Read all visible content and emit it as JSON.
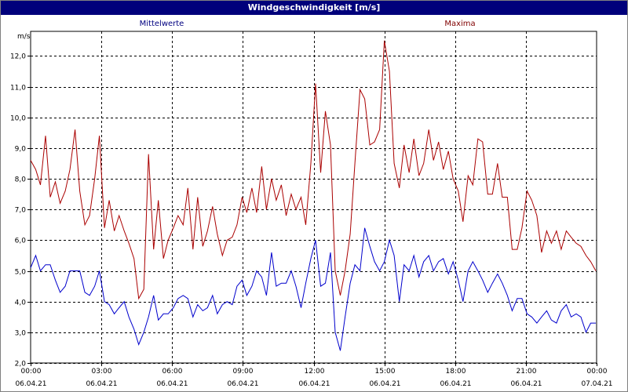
{
  "window": {
    "title": "Windgeschwindigkeit [m/s]"
  },
  "chart_data": {
    "type": "line",
    "title": "Windgeschwindigkeit [m/s]",
    "ylabel": "m/s",
    "xlabel": "",
    "ylim": [
      2.0,
      12.8
    ],
    "yticks": [
      2.0,
      3.0,
      4.0,
      5.0,
      6.0,
      7.0,
      8.0,
      9.0,
      10.0,
      11.0,
      12.0
    ],
    "ytick_labels": [
      "2,0",
      "3,0",
      "4,0",
      "5,0",
      "6,0",
      "7,0",
      "8,0",
      "9,0",
      "10,0",
      "11,0",
      "12,0"
    ],
    "xlim": [
      "06.04.21 00:00",
      "07.04.21 00:00"
    ],
    "xticks": [
      {
        "time": "00:00",
        "date": "06.04.21"
      },
      {
        "time": "03:00",
        "date": "06.04.21"
      },
      {
        "time": "06:00",
        "date": "06.04.21"
      },
      {
        "time": "09:00",
        "date": "06.04.21"
      },
      {
        "time": "12:00",
        "date": "06.04.21"
      },
      {
        "time": "15:00",
        "date": "06.04.21"
      },
      {
        "time": "18:00",
        "date": "06.04.21"
      },
      {
        "time": "21:00",
        "date": "06.04.21"
      },
      {
        "time": "00:00",
        "date": "07.04.21"
      }
    ],
    "grid": true,
    "legend_position": "top",
    "series": [
      {
        "name": "Mittelwerte",
        "color": "#0000cc",
        "points": [
          [
            "06.04.21 00:00",
            5.1
          ],
          [
            "06.04.21 00:13",
            5.5
          ],
          [
            "06.04.21 00:25",
            5.0
          ],
          [
            "06.04.21 00:38",
            5.2
          ],
          [
            "06.04.21 00:50",
            5.2
          ],
          [
            "06.04.21 01:03",
            4.7
          ],
          [
            "06.04.21 01:15",
            4.3
          ],
          [
            "06.04.21 01:28",
            4.5
          ],
          [
            "06.04.21 01:40",
            5.0
          ],
          [
            "06.04.21 01:53",
            5.0
          ],
          [
            "06.04.21 02:05",
            5.0
          ],
          [
            "06.04.21 02:18",
            4.3
          ],
          [
            "06.04.21 02:30",
            4.2
          ],
          [
            "06.04.21 02:43",
            4.5
          ],
          [
            "06.04.21 02:55",
            5.0
          ],
          [
            "06.04.21 03:08",
            4.0
          ],
          [
            "06.04.21 03:20",
            3.9
          ],
          [
            "06.04.21 03:33",
            3.6
          ],
          [
            "06.04.21 03:45",
            3.8
          ],
          [
            "06.04.21 03:58",
            4.0
          ],
          [
            "06.04.21 04:10",
            3.5
          ],
          [
            "06.04.21 04:23",
            3.1
          ],
          [
            "06.04.21 04:35",
            2.6
          ],
          [
            "06.04.21 04:48",
            3.0
          ],
          [
            "06.04.21 05:00",
            3.5
          ],
          [
            "06.04.21 05:13",
            4.2
          ],
          [
            "06.04.21 05:25",
            3.4
          ],
          [
            "06.04.21 05:38",
            3.6
          ],
          [
            "06.04.21 05:50",
            3.6
          ],
          [
            "06.04.21 06:03",
            3.8
          ],
          [
            "06.04.21 06:15",
            4.1
          ],
          [
            "06.04.21 06:28",
            4.2
          ],
          [
            "06.04.21 06:40",
            4.1
          ],
          [
            "06.04.21 06:53",
            3.5
          ],
          [
            "06.04.21 07:05",
            3.9
          ],
          [
            "06.04.21 07:18",
            3.7
          ],
          [
            "06.04.21 07:30",
            3.8
          ],
          [
            "06.04.21 07:43",
            4.2
          ],
          [
            "06.04.21 07:55",
            3.6
          ],
          [
            "06.04.21 08:08",
            3.9
          ],
          [
            "06.04.21 08:20",
            4.0
          ],
          [
            "06.04.21 08:33",
            3.9
          ],
          [
            "06.04.21 08:45",
            4.5
          ],
          [
            "06.04.21 08:58",
            4.7
          ],
          [
            "06.04.21 09:10",
            4.2
          ],
          [
            "06.04.21 09:23",
            4.5
          ],
          [
            "06.04.21 09:35",
            5.0
          ],
          [
            "06.04.21 09:48",
            4.8
          ],
          [
            "06.04.21 10:00",
            4.2
          ],
          [
            "06.04.21 10:13",
            5.6
          ],
          [
            "06.04.21 10:25",
            4.5
          ],
          [
            "06.04.21 10:38",
            4.6
          ],
          [
            "06.04.21 10:50",
            4.6
          ],
          [
            "06.04.21 11:03",
            5.0
          ],
          [
            "06.04.21 11:15",
            4.5
          ],
          [
            "06.04.21 11:28",
            3.8
          ],
          [
            "06.04.21 11:40",
            4.6
          ],
          [
            "06.04.21 11:53",
            5.4
          ],
          [
            "06.04.21 12:05",
            6.0
          ],
          [
            "06.04.21 12:18",
            4.5
          ],
          [
            "06.04.21 12:30",
            4.6
          ],
          [
            "06.04.21 12:43",
            5.6
          ],
          [
            "06.04.21 12:55",
            3.0
          ],
          [
            "06.04.21 13:08",
            2.4
          ],
          [
            "06.04.21 13:20",
            3.5
          ],
          [
            "06.04.21 13:33",
            4.6
          ],
          [
            "06.04.21 13:45",
            5.2
          ],
          [
            "06.04.21 13:58",
            5.0
          ],
          [
            "06.04.21 14:10",
            6.4
          ],
          [
            "06.04.21 14:23",
            5.8
          ],
          [
            "06.04.21 14:35",
            5.3
          ],
          [
            "06.04.21 14:48",
            5.0
          ],
          [
            "06.04.21 15:00",
            5.3
          ],
          [
            "06.04.21 15:13",
            6.0
          ],
          [
            "06.04.21 15:25",
            5.5
          ],
          [
            "06.04.21 15:38",
            4.0
          ],
          [
            "06.04.21 15:50",
            5.2
          ],
          [
            "06.04.21 16:03",
            5.0
          ],
          [
            "06.04.21 16:15",
            5.5
          ],
          [
            "06.04.21 16:28",
            4.8
          ],
          [
            "06.04.21 16:40",
            5.3
          ],
          [
            "06.04.21 16:53",
            5.5
          ],
          [
            "06.04.21 17:05",
            5.0
          ],
          [
            "06.04.21 17:18",
            5.3
          ],
          [
            "06.04.21 17:30",
            5.4
          ],
          [
            "06.04.21 17:43",
            4.9
          ],
          [
            "06.04.21 17:55",
            5.3
          ],
          [
            "06.04.21 18:08",
            4.7
          ],
          [
            "06.04.21 18:20",
            4.0
          ],
          [
            "06.04.21 18:33",
            5.0
          ],
          [
            "06.04.21 18:45",
            5.3
          ],
          [
            "06.04.21 18:58",
            5.0
          ],
          [
            "06.04.21 19:10",
            4.7
          ],
          [
            "06.04.21 19:23",
            4.3
          ],
          [
            "06.04.21 19:35",
            4.6
          ],
          [
            "06.04.21 19:48",
            4.9
          ],
          [
            "06.04.21 20:00",
            4.6
          ],
          [
            "06.04.21 20:13",
            4.2
          ],
          [
            "06.04.21 20:25",
            3.7
          ],
          [
            "06.04.21 20:38",
            4.1
          ],
          [
            "06.04.21 20:50",
            4.1
          ],
          [
            "06.04.21 21:03",
            3.6
          ],
          [
            "06.04.21 21:15",
            3.5
          ],
          [
            "06.04.21 21:28",
            3.3
          ],
          [
            "06.04.21 21:40",
            3.5
          ],
          [
            "06.04.21 21:53",
            3.7
          ],
          [
            "06.04.21 22:05",
            3.4
          ],
          [
            "06.04.21 22:18",
            3.3
          ],
          [
            "06.04.21 22:30",
            3.7
          ],
          [
            "06.04.21 22:43",
            3.9
          ],
          [
            "06.04.21 22:55",
            3.5
          ],
          [
            "06.04.21 23:08",
            3.6
          ],
          [
            "06.04.21 23:20",
            3.5
          ],
          [
            "06.04.21 23:33",
            3.0
          ],
          [
            "06.04.21 23:45",
            3.3
          ],
          [
            "06.04.21 23:58",
            3.3
          ]
        ]
      },
      {
        "name": "Maxima",
        "color": "#aa0000",
        "points": [
          [
            "06.04.21 00:00",
            8.6
          ],
          [
            "06.04.21 00:13",
            8.3
          ],
          [
            "06.04.21 00:25",
            7.8
          ],
          [
            "06.04.21 00:38",
            9.4
          ],
          [
            "06.04.21 00:50",
            7.4
          ],
          [
            "06.04.21 01:03",
            7.9
          ],
          [
            "06.04.21 01:15",
            7.2
          ],
          [
            "06.04.21 01:28",
            7.6
          ],
          [
            "06.04.21 01:40",
            8.3
          ],
          [
            "06.04.21 01:53",
            9.6
          ],
          [
            "06.04.21 02:05",
            7.6
          ],
          [
            "06.04.21 02:18",
            6.5
          ],
          [
            "06.04.21 02:30",
            6.8
          ],
          [
            "06.04.21 02:43",
            8.0
          ],
          [
            "06.04.21 02:55",
            9.4
          ],
          [
            "06.04.21 03:08",
            6.4
          ],
          [
            "06.04.21 03:20",
            7.3
          ],
          [
            "06.04.21 03:33",
            6.3
          ],
          [
            "06.04.21 03:45",
            6.8
          ],
          [
            "06.04.21 03:58",
            6.3
          ],
          [
            "06.04.21 04:10",
            5.9
          ],
          [
            "06.04.21 04:23",
            5.4
          ],
          [
            "06.04.21 04:35",
            4.1
          ],
          [
            "06.04.21 04:48",
            4.4
          ],
          [
            "06.04.21 05:00",
            8.8
          ],
          [
            "06.04.21 05:13",
            5.7
          ],
          [
            "06.04.21 05:25",
            7.3
          ],
          [
            "06.04.21 05:38",
            5.4
          ],
          [
            "06.04.21 05:50",
            6.0
          ],
          [
            "06.04.21 06:03",
            6.4
          ],
          [
            "06.04.21 06:15",
            6.8
          ],
          [
            "06.04.21 06:28",
            6.5
          ],
          [
            "06.04.21 06:40",
            7.7
          ],
          [
            "06.04.21 06:53",
            5.7
          ],
          [
            "06.04.21 07:05",
            7.4
          ],
          [
            "06.04.21 07:18",
            5.8
          ],
          [
            "06.04.21 07:30",
            6.3
          ],
          [
            "06.04.21 07:43",
            7.1
          ],
          [
            "06.04.21 07:55",
            6.2
          ],
          [
            "06.04.21 08:08",
            5.5
          ],
          [
            "06.04.21 08:20",
            6.0
          ],
          [
            "06.04.21 08:33",
            6.1
          ],
          [
            "06.04.21 08:45",
            6.5
          ],
          [
            "06.04.21 08:58",
            7.4
          ],
          [
            "06.04.21 09:10",
            6.9
          ],
          [
            "06.04.21 09:23",
            7.7
          ],
          [
            "06.04.21 09:35",
            6.9
          ],
          [
            "06.04.21 09:48",
            8.4
          ],
          [
            "06.04.21 10:00",
            7.0
          ],
          [
            "06.04.21 10:13",
            8.0
          ],
          [
            "06.04.21 10:25",
            7.3
          ],
          [
            "06.04.21 10:38",
            7.8
          ],
          [
            "06.04.21 10:50",
            6.8
          ],
          [
            "06.04.21 11:03",
            7.5
          ],
          [
            "06.04.21 11:15",
            7.0
          ],
          [
            "06.04.21 11:28",
            7.4
          ],
          [
            "06.04.21 11:40",
            6.5
          ],
          [
            "06.04.21 11:53",
            8.5
          ],
          [
            "06.04.21 12:05",
            11.1
          ],
          [
            "06.04.21 12:18",
            8.2
          ],
          [
            "06.04.21 12:30",
            10.2
          ],
          [
            "06.04.21 12:43",
            9.1
          ],
          [
            "06.04.21 12:55",
            5.0
          ],
          [
            "06.04.21 13:08",
            4.2
          ],
          [
            "06.04.21 13:20",
            5.0
          ],
          [
            "06.04.21 13:33",
            6.2
          ],
          [
            "06.04.21 13:45",
            8.5
          ],
          [
            "06.04.21 13:58",
            10.9
          ],
          [
            "06.04.21 14:10",
            10.6
          ],
          [
            "06.04.21 14:23",
            9.1
          ],
          [
            "06.04.21 14:35",
            9.2
          ],
          [
            "06.04.21 14:48",
            9.6
          ],
          [
            "06.04.21 15:00",
            12.5
          ],
          [
            "06.04.21 15:13",
            11.5
          ],
          [
            "06.04.21 15:25",
            8.5
          ],
          [
            "06.04.21 15:38",
            7.7
          ],
          [
            "06.04.21 15:50",
            9.1
          ],
          [
            "06.04.21 16:03",
            8.2
          ],
          [
            "06.04.21 16:15",
            9.3
          ],
          [
            "06.04.21 16:28",
            8.1
          ],
          [
            "06.04.21 16:40",
            8.5
          ],
          [
            "06.04.21 16:53",
            9.6
          ],
          [
            "06.04.21 17:05",
            8.6
          ],
          [
            "06.04.21 17:18",
            9.2
          ],
          [
            "06.04.21 17:30",
            8.3
          ],
          [
            "06.04.21 17:43",
            8.9
          ],
          [
            "06.04.21 17:55",
            8.0
          ],
          [
            "06.04.21 18:08",
            7.6
          ],
          [
            "06.04.21 18:20",
            6.6
          ],
          [
            "06.04.21 18:33",
            8.1
          ],
          [
            "06.04.21 18:45",
            7.8
          ],
          [
            "06.04.21 18:58",
            9.3
          ],
          [
            "06.04.21 19:10",
            9.2
          ],
          [
            "06.04.21 19:23",
            7.5
          ],
          [
            "06.04.21 19:35",
            7.5
          ],
          [
            "06.04.21 19:48",
            8.5
          ],
          [
            "06.04.21 20:00",
            7.4
          ],
          [
            "06.04.21 20:13",
            7.4
          ],
          [
            "06.04.21 20:25",
            5.7
          ],
          [
            "06.04.21 20:38",
            5.7
          ],
          [
            "06.04.21 20:50",
            6.4
          ],
          [
            "06.04.21 21:03",
            7.6
          ],
          [
            "06.04.21 21:15",
            7.3
          ],
          [
            "06.04.21 21:28",
            6.8
          ],
          [
            "06.04.21 21:40",
            5.6
          ],
          [
            "06.04.21 21:53",
            6.3
          ],
          [
            "06.04.21 22:05",
            5.9
          ],
          [
            "06.04.21 22:18",
            6.3
          ],
          [
            "06.04.21 22:30",
            5.7
          ],
          [
            "06.04.21 22:43",
            6.3
          ],
          [
            "06.04.21 22:55",
            6.1
          ],
          [
            "06.04.21 23:08",
            5.9
          ],
          [
            "06.04.21 23:20",
            5.8
          ],
          [
            "06.04.21 23:33",
            5.5
          ],
          [
            "06.04.21 23:45",
            5.3
          ],
          [
            "06.04.21 23:58",
            5.0
          ]
        ]
      }
    ]
  }
}
